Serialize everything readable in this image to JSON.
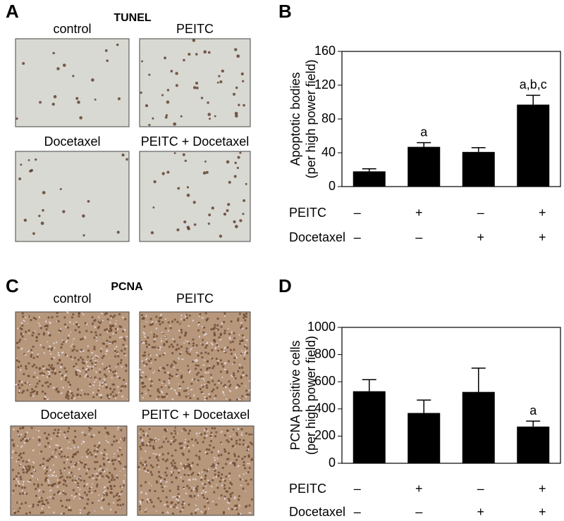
{
  "panels": {
    "A": {
      "label": "A",
      "title": "TUNEL",
      "images": [
        "control",
        "PEITC",
        "Docetaxel",
        "PEITC + Docetaxel"
      ]
    },
    "C": {
      "label": "C",
      "title": "PCNA",
      "images": [
        "control",
        "PEITC",
        "Docetaxel",
        "PEITC + Docetaxel"
      ]
    }
  },
  "chart_data": [
    {
      "type": "bar",
      "panel_label": "B",
      "ylabel": [
        "Apoptotic bodies",
        "(per high power field)"
      ],
      "values": [
        18,
        47,
        41,
        97
      ],
      "errors": [
        3,
        5,
        5,
        11
      ],
      "color": "#000000",
      "annotations": [
        {
          "index": 1,
          "text": "a"
        },
        {
          "index": 3,
          "text": "a,b,c"
        }
      ],
      "ylim": [
        0,
        160
      ],
      "yticks": [
        0,
        40,
        80,
        120,
        160
      ],
      "treatments": [
        {
          "name": "PEITC",
          "signs": [
            "–",
            "+",
            "–",
            "+"
          ]
        },
        {
          "name": "Docetaxel",
          "signs": [
            "–",
            "–",
            "+",
            "+"
          ]
        }
      ]
    },
    {
      "type": "bar",
      "panel_label": "D",
      "ylabel": [
        "PCNA positive cells",
        "(per high power field)"
      ],
      "values": [
        530,
        370,
        525,
        270
      ],
      "errors": [
        85,
        95,
        175,
        40
      ],
      "color": "#000000",
      "annotations": [
        {
          "index": 3,
          "text": "a"
        }
      ],
      "ylim": [
        0,
        1000
      ],
      "yticks": [
        0,
        200,
        400,
        600,
        800,
        1000
      ],
      "treatments": [
        {
          "name": "PEITC",
          "signs": [
            "–",
            "+",
            "–",
            "+"
          ]
        },
        {
          "name": "Docetaxel",
          "signs": [
            "–",
            "–",
            "+",
            "+"
          ]
        }
      ]
    }
  ]
}
